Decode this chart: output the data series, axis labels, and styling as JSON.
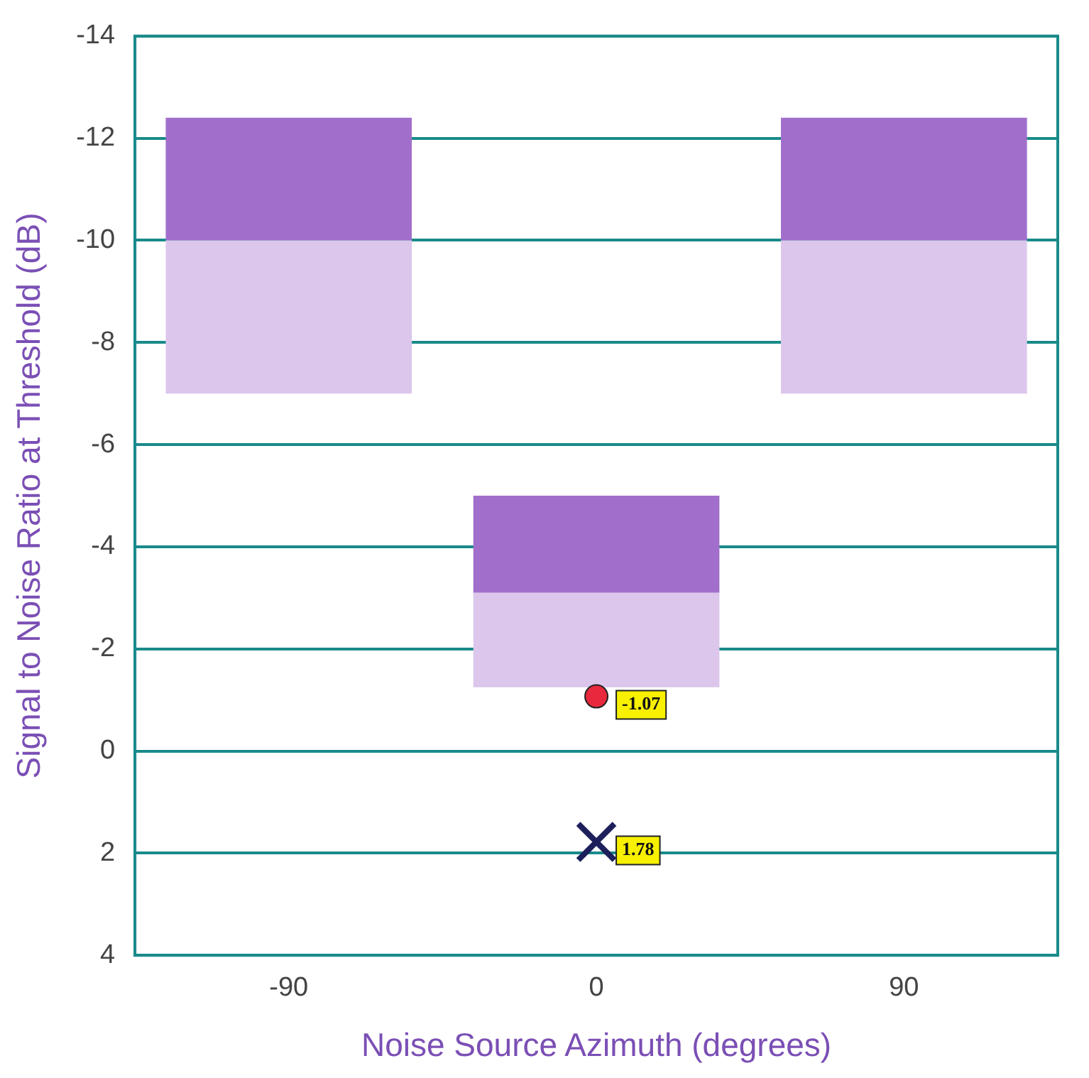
{
  "chart_data": {
    "type": "bar",
    "xlabel": "Noise Source Azimuth (degrees)",
    "ylabel": "Signal to Noise Ratio at Threshold (dB)",
    "categories": [
      "-90",
      "0",
      "90"
    ],
    "series": [
      {
        "color": "#dcc6ec",
        "base": [
          -7,
          -1.25,
          -7
        ],
        "values": [
          -3,
          -1.85,
          -3
        ]
      },
      {
        "color": "#a16fcb",
        "base": [
          -10,
          -3.1,
          -10
        ],
        "values": [
          -2.4,
          -1.9,
          -2.4
        ]
      },
      {
        "type": "scatter",
        "color": "#e8283c",
        "marker": "circle",
        "x": [
          "0"
        ],
        "values": [
          -1.07
        ],
        "value_labels": [
          "-1.07"
        ]
      },
      {
        "type": "scatter",
        "color": "#1c1f5a",
        "marker": "cross",
        "x": [
          "0"
        ],
        "values": [
          1.78
        ],
        "value_labels": [
          "1.78"
        ]
      }
    ],
    "ylim": [
      4,
      -14
    ],
    "yticks": [
      4,
      2,
      0,
      -2,
      -4,
      -6,
      -8,
      -10,
      -12,
      -14
    ],
    "grid": "y"
  }
}
